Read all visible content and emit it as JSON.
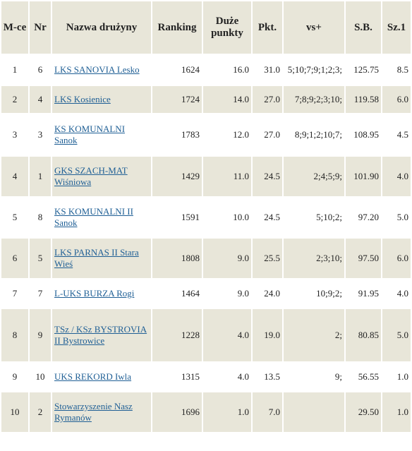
{
  "headers": {
    "place": "M-ce",
    "nr": "Nr",
    "team": "Nazwa drużyny",
    "ranking": "Ranking",
    "big_points": "Duże punkty",
    "points": "Pkt.",
    "vs": "vs+",
    "sb": "S.B.",
    "sz1": "Sz.1"
  },
  "rows": [
    {
      "place": "1",
      "nr": "6",
      "team": "LKS SANOVIA Lesko",
      "ranking": "1624",
      "big_points": "16.0",
      "points": "31.0",
      "vs": "5;10;7;9;1;2;3;",
      "sb": "125.75",
      "sz1": "8.5"
    },
    {
      "place": "2",
      "nr": "4",
      "team": "LKS Kosienice",
      "ranking": "1724",
      "big_points": "14.0",
      "points": "27.0",
      "vs": "7;8;9;2;3;10;",
      "sb": "119.58",
      "sz1": "6.0"
    },
    {
      "place": "3",
      "nr": "3",
      "team": "KS KOMUNALNI Sanok",
      "ranking": "1783",
      "big_points": "12.0",
      "points": "27.0",
      "vs": "8;9;1;2;10;7;",
      "sb": "108.95",
      "sz1": "4.5"
    },
    {
      "place": "4",
      "nr": "1",
      "team": "GKS SZACH-MAT Wiśniowa",
      "ranking": "1429",
      "big_points": "11.0",
      "points": "24.5",
      "vs": "2;4;5;9;",
      "sb": "101.90",
      "sz1": "4.0"
    },
    {
      "place": "5",
      "nr": "8",
      "team": "KS KOMUNALNI II Sanok",
      "ranking": "1591",
      "big_points": "10.0",
      "points": "24.5",
      "vs": "5;10;2;",
      "sb": "97.20",
      "sz1": "5.0"
    },
    {
      "place": "6",
      "nr": "5",
      "team": "LKS PARNAS II Stara Wieś",
      "ranking": "1808",
      "big_points": "9.0",
      "points": "25.5",
      "vs": "2;3;10;",
      "sb": "97.50",
      "sz1": "6.0"
    },
    {
      "place": "7",
      "nr": "7",
      "team": "L-UKS BURZA Rogi",
      "ranking": "1464",
      "big_points": "9.0",
      "points": "24.0",
      "vs": "10;9;2;",
      "sb": "91.95",
      "sz1": "4.0"
    },
    {
      "place": "8",
      "nr": "9",
      "team": "TSz / KSz BYSTROVIA II Bystrowice",
      "ranking": "1228",
      "big_points": "4.0",
      "points": "19.0",
      "vs": "2;",
      "sb": "80.85",
      "sz1": "5.0"
    },
    {
      "place": "9",
      "nr": "10",
      "team": "UKS REKORD Iwla",
      "ranking": "1315",
      "big_points": "4.0",
      "points": "13.5",
      "vs": "9;",
      "sb": "56.55",
      "sz1": "1.0"
    },
    {
      "place": "10",
      "nr": "2",
      "team": "Stowarzyszenie Nasz Rymanów",
      "ranking": "1696",
      "big_points": "1.0",
      "points": "7.0",
      "vs": "",
      "sb": "29.50",
      "sz1": "1.0"
    }
  ]
}
